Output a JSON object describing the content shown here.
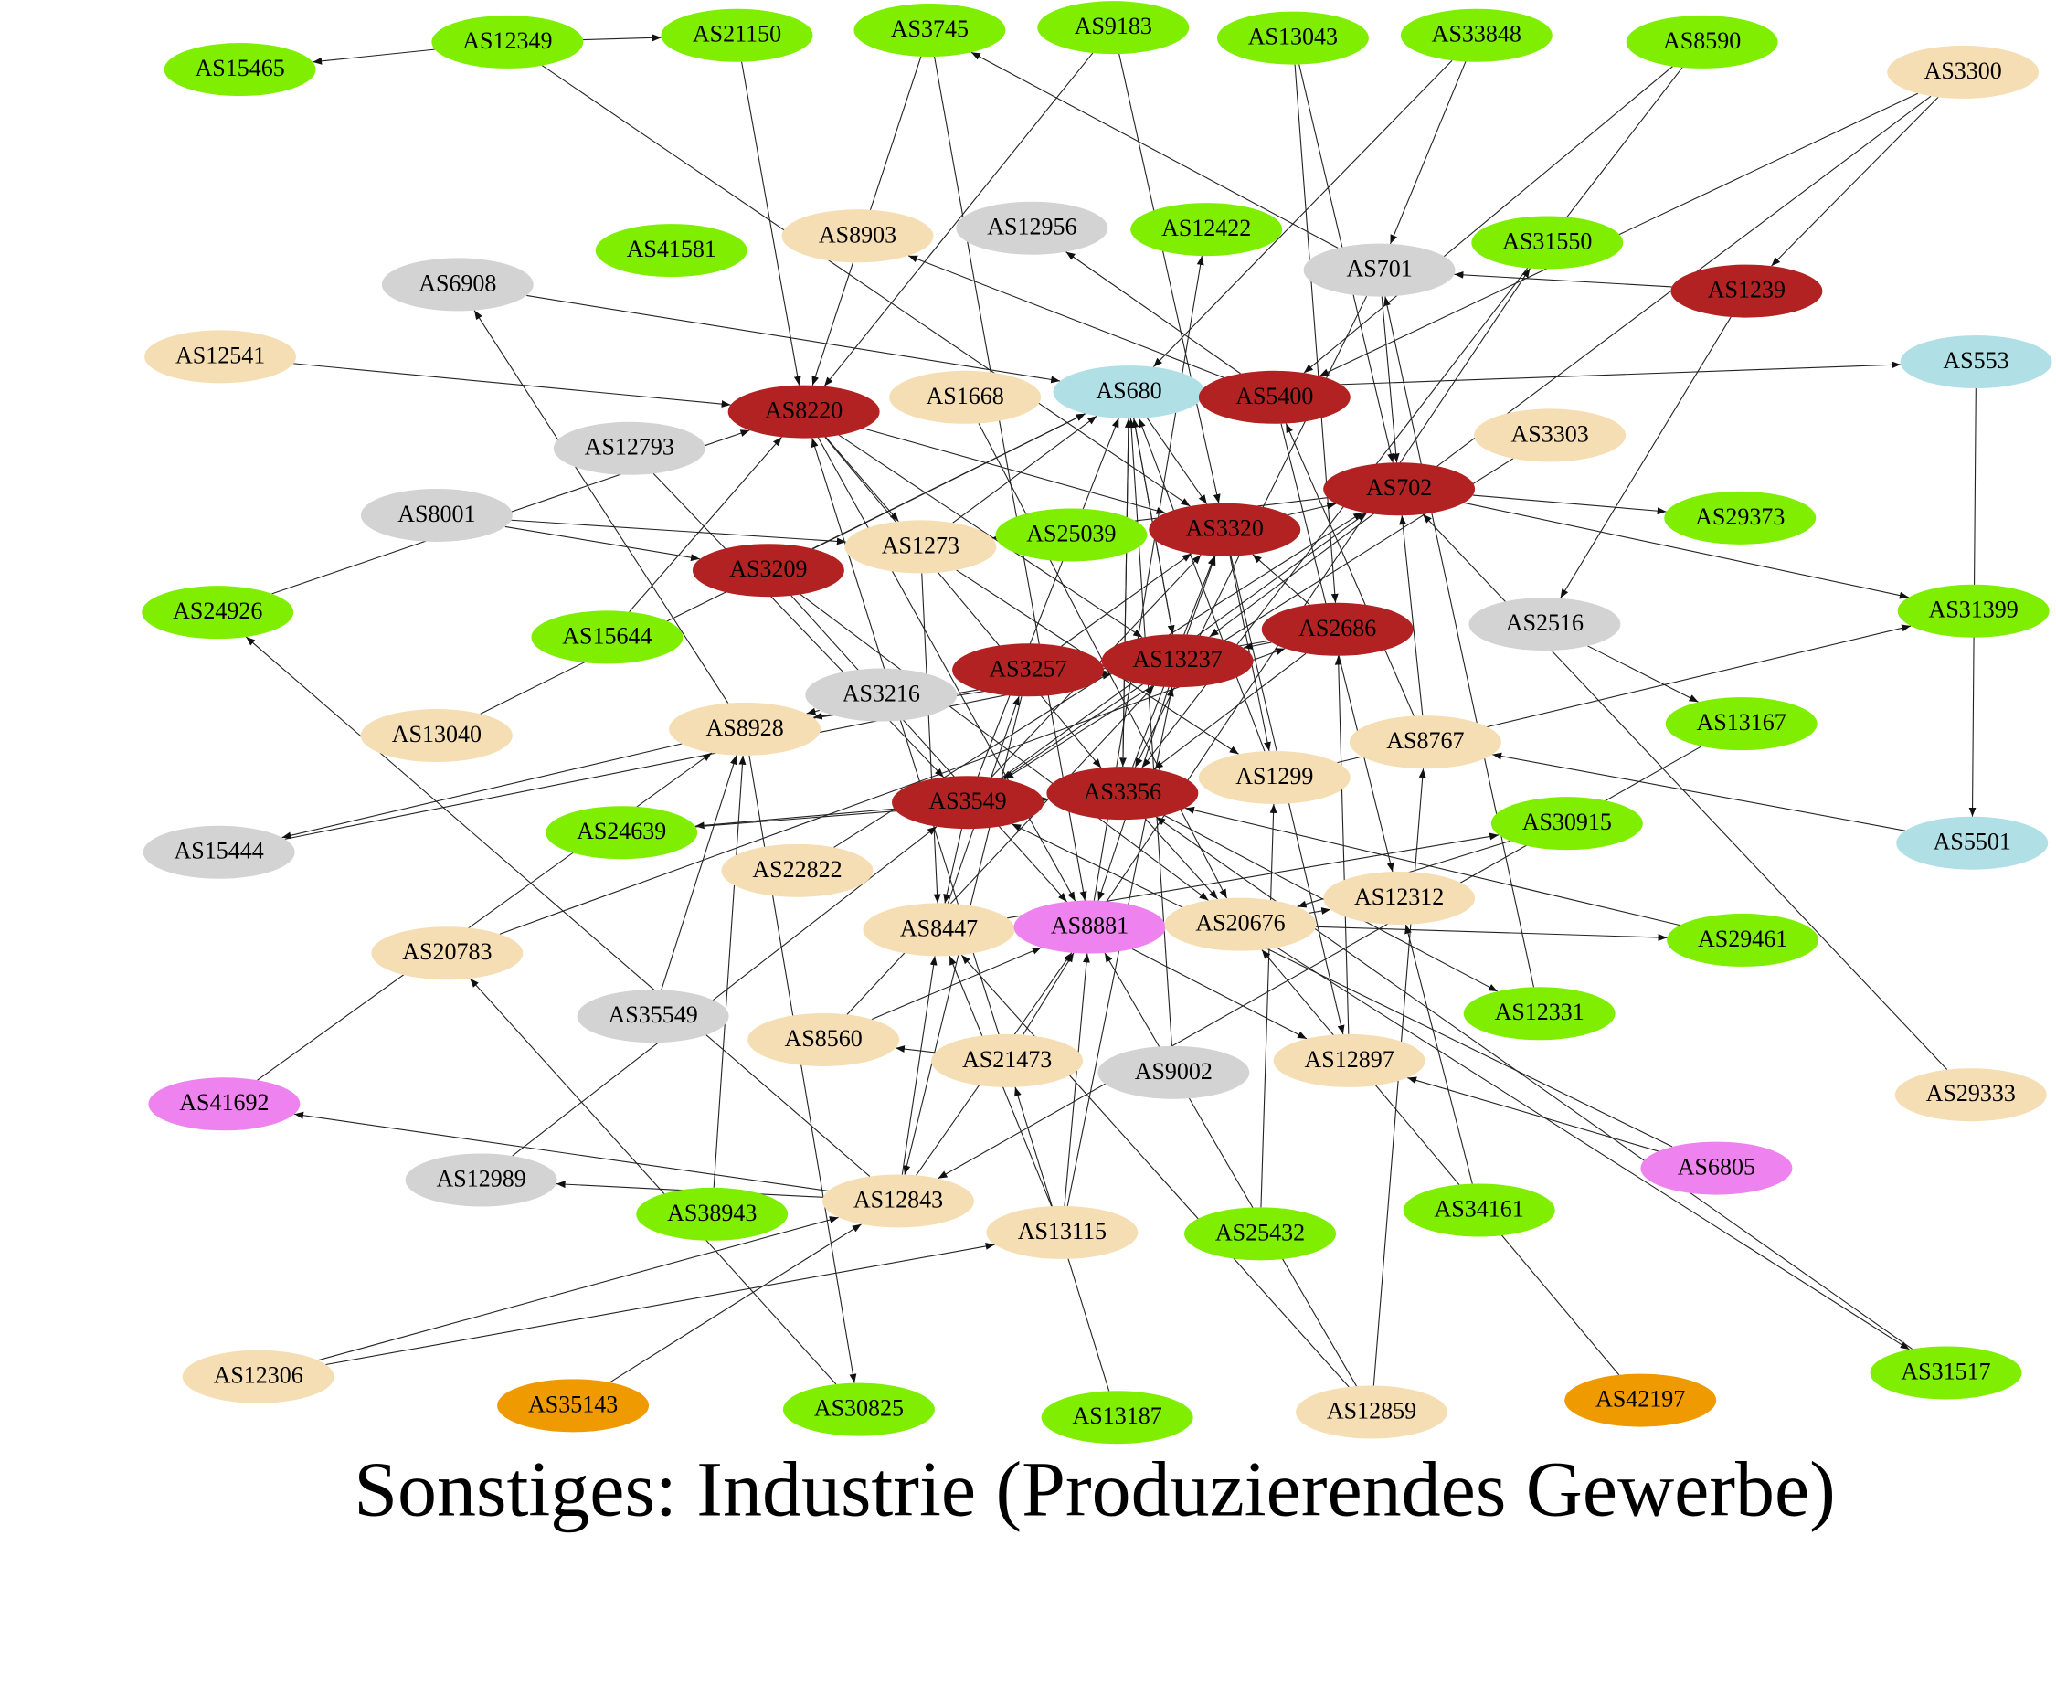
{
  "title": "Sonstiges: Industrie (Produzierendes Gewerbe)",
  "nodes": [
    {
      "label": "AS15465",
      "color": "#7fee00"
    },
    {
      "label": "AS12349",
      "color": "#7fee00"
    },
    {
      "label": "AS21150",
      "color": "#7fee00"
    },
    {
      "label": "AS3745",
      "color": "#7fee00"
    },
    {
      "label": "AS9183",
      "color": "#7fee00"
    },
    {
      "label": "AS13043",
      "color": "#7fee00"
    },
    {
      "label": "AS33848",
      "color": "#7fee00"
    },
    {
      "label": "AS8590",
      "color": "#7fee00"
    },
    {
      "label": "AS3300",
      "color": "#f5deb3"
    },
    {
      "label": "AS41581",
      "color": "#7fee00"
    },
    {
      "label": "AS8903",
      "color": "#f5deb3"
    },
    {
      "label": "AS12956",
      "color": "#d3d3d3"
    },
    {
      "label": "AS12422",
      "color": "#7fee00"
    },
    {
      "label": "AS701",
      "color": "#d3d3d3"
    },
    {
      "label": "AS31550",
      "color": "#7fee00"
    },
    {
      "label": "AS1239",
      "color": "#b22222"
    },
    {
      "label": "AS6908",
      "color": "#d3d3d3"
    },
    {
      "label": "AS12541",
      "color": "#f5deb3"
    },
    {
      "label": "AS8220",
      "color": "#b22222"
    },
    {
      "label": "AS1668",
      "color": "#f5deb3"
    },
    {
      "label": "AS680",
      "color": "#b0e0e6"
    },
    {
      "label": "AS5400",
      "color": "#b22222"
    },
    {
      "label": "AS553",
      "color": "#b0e0e6"
    },
    {
      "label": "AS12793",
      "color": "#d3d3d3"
    },
    {
      "label": "AS3303",
      "color": "#f5deb3"
    },
    {
      "label": "AS702",
      "color": "#b22222"
    },
    {
      "label": "AS8001",
      "color": "#d3d3d3"
    },
    {
      "label": "AS1273",
      "color": "#f5deb3"
    },
    {
      "label": "AS25039",
      "color": "#7fee00"
    },
    {
      "label": "AS3320",
      "color": "#b22222"
    },
    {
      "label": "AS29373",
      "color": "#7fee00"
    },
    {
      "label": "AS3209",
      "color": "#b22222"
    },
    {
      "label": "AS24926",
      "color": "#7fee00"
    },
    {
      "label": "AS15644",
      "color": "#7fee00"
    },
    {
      "label": "AS2516",
      "color": "#d3d3d3"
    },
    {
      "label": "AS31399",
      "color": "#7fee00"
    },
    {
      "label": "AS2686",
      "color": "#b22222"
    },
    {
      "label": "AS3257",
      "color": "#b22222"
    },
    {
      "label": "AS13237",
      "color": "#b22222"
    },
    {
      "label": "AS3216",
      "color": "#d3d3d3"
    },
    {
      "label": "AS13040",
      "color": "#f5deb3"
    },
    {
      "label": "AS8928",
      "color": "#f5deb3"
    },
    {
      "label": "AS13167",
      "color": "#7fee00"
    },
    {
      "label": "AS8767",
      "color": "#f5deb3"
    },
    {
      "label": "AS1299",
      "color": "#f5deb3"
    },
    {
      "label": "AS3356",
      "color": "#b22222"
    },
    {
      "label": "AS3549",
      "color": "#b22222"
    },
    {
      "label": "AS24639",
      "color": "#7fee00"
    },
    {
      "label": "AS15444",
      "color": "#d3d3d3"
    },
    {
      "label": "AS5501",
      "color": "#b0e0e6"
    },
    {
      "label": "AS30915",
      "color": "#7fee00"
    },
    {
      "label": "AS22822",
      "color": "#f5deb3"
    },
    {
      "label": "AS12312",
      "color": "#f5deb3"
    },
    {
      "label": "AS8447",
      "color": "#f5deb3"
    },
    {
      "label": "AS8881",
      "color": "#ee82ee"
    },
    {
      "label": "AS20676",
      "color": "#f5deb3"
    },
    {
      "label": "AS29461",
      "color": "#7fee00"
    },
    {
      "label": "AS20783",
      "color": "#f5deb3"
    },
    {
      "label": "AS35549",
      "color": "#d3d3d3"
    },
    {
      "label": "AS12331",
      "color": "#7fee00"
    },
    {
      "label": "AS8560",
      "color": "#f5deb3"
    },
    {
      "label": "AS21473",
      "color": "#f5deb3"
    },
    {
      "label": "AS9002",
      "color": "#d3d3d3"
    },
    {
      "label": "AS12897",
      "color": "#f5deb3"
    },
    {
      "label": "AS29333",
      "color": "#f5deb3"
    },
    {
      "label": "AS41692",
      "color": "#ee82ee"
    },
    {
      "label": "AS6805",
      "color": "#ee82ee"
    },
    {
      "label": "AS12989",
      "color": "#d3d3d3"
    },
    {
      "label": "AS38943",
      "color": "#7fee00"
    },
    {
      "label": "AS12843",
      "color": "#f5deb3"
    },
    {
      "label": "AS13115",
      "color": "#f5deb3"
    },
    {
      "label": "AS25432",
      "color": "#7fee00"
    },
    {
      "label": "AS34161",
      "color": "#7fee00"
    },
    {
      "label": "AS12306",
      "color": "#f5deb3"
    },
    {
      "label": "AS35143",
      "color": "#ee9a00"
    },
    {
      "label": "AS30825",
      "color": "#7fee00"
    },
    {
      "label": "AS13187",
      "color": "#7fee00"
    },
    {
      "label": "AS12859",
      "color": "#f5deb3"
    },
    {
      "label": "AS42197",
      "color": "#ee9a00"
    },
    {
      "label": "AS31517",
      "color": "#7fee00"
    }
  ]
}
